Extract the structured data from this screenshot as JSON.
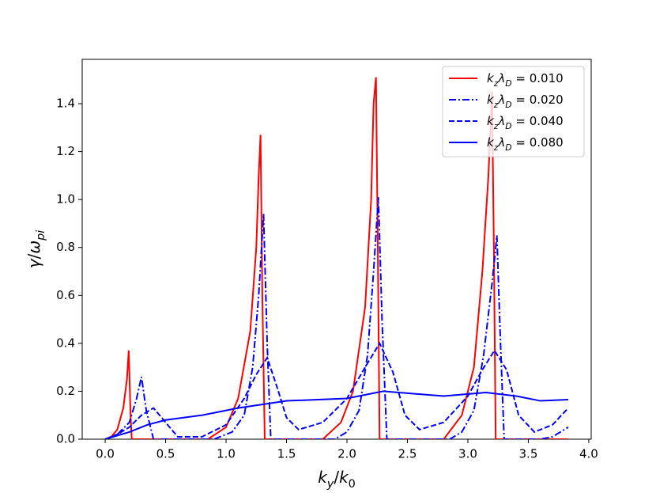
{
  "chart_data": {
    "type": "line",
    "x_label": "ky/k0",
    "y_label": "γ/ωpi",
    "xlim": [
      -0.19,
      4.02
    ],
    "ylim": [
      0,
      1.585
    ],
    "xticks": [
      {
        "value": 0,
        "label": "0.0"
      },
      {
        "value": 0.5,
        "label": "0.5"
      },
      {
        "value": 1,
        "label": "1.0"
      },
      {
        "value": 1.5,
        "label": "1.5"
      },
      {
        "value": 2,
        "label": "2.0"
      },
      {
        "value": 2.5,
        "label": "2.5"
      },
      {
        "value": 3,
        "label": "3.0"
      },
      {
        "value": 3.5,
        "label": "3.5"
      },
      {
        "value": 4,
        "label": "4.0"
      }
    ],
    "yticks": [
      {
        "value": 0,
        "label": "0.0"
      },
      {
        "value": 0.2,
        "label": "0.2"
      },
      {
        "value": 0.4,
        "label": "0.4"
      },
      {
        "value": 0.6,
        "label": "0.6"
      },
      {
        "value": 0.8,
        "label": "0.8"
      },
      {
        "value": 1,
        "label": "1.0"
      },
      {
        "value": 1.2,
        "label": "1.2"
      },
      {
        "value": 1.4,
        "label": "1.4"
      }
    ],
    "legend": "upper right",
    "series": [
      {
        "name": "kzλD = 0.010",
        "color": "#ff0000",
        "linestyle": "solid",
        "x": [
          0,
          0.05,
          0.1,
          0.15,
          0.18,
          0.195,
          0.21,
          0.22,
          0.85,
          1.0,
          1.1,
          1.2,
          1.25,
          1.27,
          1.285,
          1.3,
          1.32,
          1.8,
          1.95,
          2.05,
          2.15,
          2.2,
          2.22,
          2.24,
          2.255,
          2.27,
          2.8,
          2.95,
          3.05,
          3.12,
          3.17,
          3.2,
          3.215,
          3.23,
          3.83
        ],
        "values": [
          0,
          0.01,
          0.04,
          0.13,
          0.25,
          0.37,
          0.1,
          0,
          0,
          0.05,
          0.17,
          0.45,
          0.8,
          1.1,
          1.27,
          0.6,
          0,
          0,
          0.07,
          0.2,
          0.55,
          1.0,
          1.4,
          1.51,
          0.8,
          0,
          0,
          0.1,
          0.3,
          0.7,
          1.1,
          1.45,
          0.8,
          0,
          0
        ]
      },
      {
        "name": "kzλD = 0.020",
        "color": "#0000ff",
        "linestyle": "dashdot",
        "x": [
          0,
          0.1,
          0.2,
          0.26,
          0.3,
          0.34,
          0.4,
          0.9,
          1.05,
          1.15,
          1.22,
          1.27,
          1.31,
          1.34,
          1.37,
          1.9,
          2.0,
          2.1,
          2.17,
          2.22,
          2.26,
          2.29,
          2.33,
          2.85,
          2.95,
          3.05,
          3.13,
          3.2,
          3.24,
          3.27,
          3.3,
          3.6,
          3.7,
          3.83
        ],
        "values": [
          0,
          0.02,
          0.07,
          0.17,
          0.26,
          0.12,
          0,
          0,
          0.03,
          0.1,
          0.3,
          0.6,
          0.94,
          0.4,
          0,
          0,
          0.03,
          0.12,
          0.35,
          0.7,
          1.01,
          0.5,
          0,
          0,
          0.03,
          0.12,
          0.35,
          0.65,
          0.85,
          0.4,
          0,
          0,
          0.01,
          0.05
        ]
      },
      {
        "name": "kzλD = 0.040",
        "color": "#0000ff",
        "linestyle": "dashed",
        "x": [
          0,
          0.1,
          0.2,
          0.3,
          0.4,
          0.5,
          0.6,
          0.8,
          1.0,
          1.15,
          1.25,
          1.34,
          1.42,
          1.5,
          1.6,
          1.8,
          2.0,
          2.15,
          2.27,
          2.38,
          2.48,
          2.6,
          2.8,
          3.0,
          3.12,
          3.22,
          3.32,
          3.42,
          3.55,
          3.7,
          3.83
        ],
        "values": [
          0,
          0.02,
          0.05,
          0.1,
          0.13,
          0.07,
          0.01,
          0.01,
          0.06,
          0.17,
          0.27,
          0.34,
          0.22,
          0.09,
          0.04,
          0.07,
          0.17,
          0.3,
          0.4,
          0.28,
          0.1,
          0.04,
          0.07,
          0.18,
          0.29,
          0.37,
          0.29,
          0.1,
          0.03,
          0.06,
          0.13
        ]
      },
      {
        "name": "kzλD = 0.080",
        "color": "#0000ff",
        "linestyle": "solid",
        "x": [
          0,
          0.2,
          0.35,
          0.5,
          0.8,
          1.1,
          1.5,
          2.0,
          2.3,
          2.55,
          2.8,
          3.15,
          3.4,
          3.6,
          3.83
        ],
        "values": [
          0,
          0.03,
          0.06,
          0.08,
          0.1,
          0.13,
          0.16,
          0.17,
          0.2,
          0.19,
          0.18,
          0.195,
          0.18,
          0.16,
          0.165
        ]
      }
    ]
  }
}
